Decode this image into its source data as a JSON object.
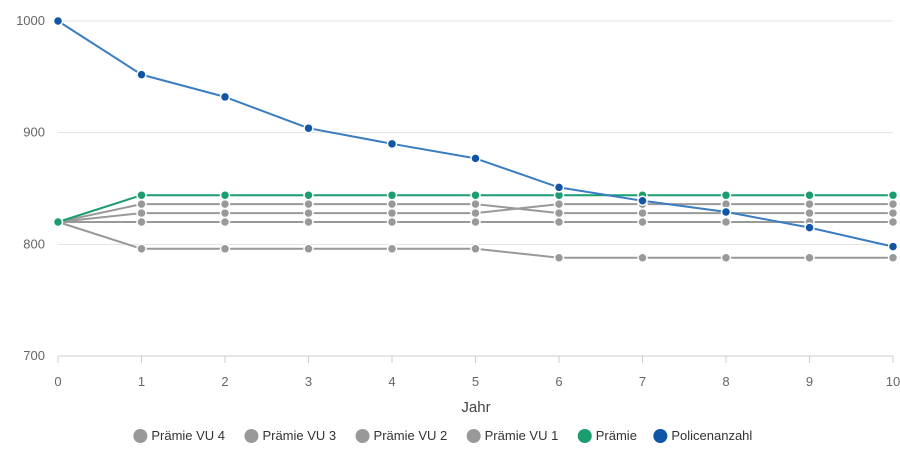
{
  "chart_data": {
    "type": "line",
    "xlabel": "Jahr",
    "ylabel": "",
    "x": [
      0,
      1,
      2,
      3,
      4,
      5,
      6,
      7,
      8,
      9,
      10
    ],
    "xlim": [
      0,
      10
    ],
    "ylim": [
      700,
      1000
    ],
    "yticks": [
      700,
      800,
      900,
      1000
    ],
    "grid": "horizontal",
    "legend_position": "bottom",
    "series": [
      {
        "name": "Prämie VU 4",
        "color": "#999999",
        "values": [
          820,
          836,
          836,
          836,
          836,
          836,
          828,
          828,
          828,
          828,
          828
        ]
      },
      {
        "name": "Prämie VU 3",
        "color": "#999999",
        "values": [
          820,
          828,
          828,
          828,
          828,
          828,
          836,
          836,
          836,
          836,
          836
        ]
      },
      {
        "name": "Prämie VU 2",
        "color": "#999999",
        "values": [
          820,
          820,
          820,
          820,
          820,
          820,
          820,
          820,
          820,
          820,
          820
        ]
      },
      {
        "name": "Prämie VU 1",
        "color": "#999999",
        "values": [
          820,
          796,
          796,
          796,
          796,
          796,
          788,
          788,
          788,
          788,
          788
        ]
      },
      {
        "name": "Prämie",
        "color": "#1a9e6e",
        "values": [
          820,
          844,
          844,
          844,
          844,
          844,
          844,
          844,
          844,
          844,
          844
        ]
      },
      {
        "name": "Policenanzahl",
        "color": "#3a7dc1",
        "marker_color": "#1155a6",
        "values": [
          1000,
          952,
          932,
          904,
          890,
          877,
          851,
          839,
          829,
          815,
          798
        ]
      }
    ]
  }
}
